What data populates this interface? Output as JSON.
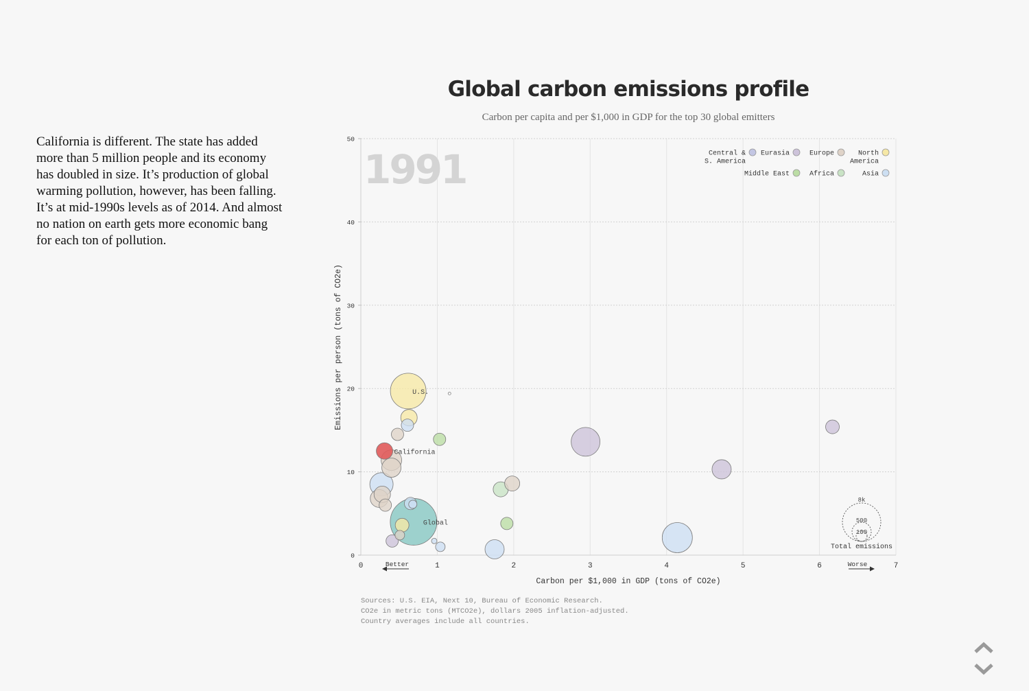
{
  "narrative": "California is different. The state has added more than 5 million people and its economy has doubled in size. It’s production of global warming pollution, however, has been falling. It’s at mid-1990s levels as of 2014. And almost no nation on earth gets more economic bang for each ton of pollution.",
  "chart_data": {
    "type": "scatter",
    "title": "Global carbon emissions profile",
    "subtitle": "Carbon per capita and per $1,000 in GDP for the top 30 global emitters",
    "year": "1991",
    "xlabel": "Carbon per $1,000 in GDP (tons of CO2e)",
    "ylabel": "Emissions per person (tons of CO2e)",
    "xlim": [
      0,
      7
    ],
    "ylim": [
      0,
      50
    ],
    "x_ticks": [
      0,
      1,
      2,
      3,
      4,
      5,
      6,
      7
    ],
    "y_ticks": [
      0,
      10,
      20,
      30,
      40,
      50
    ],
    "grid": true,
    "better_label": "Better",
    "worse_label": "Worse",
    "legend_position": "top-right",
    "legend": [
      {
        "lines": [
          "Central &",
          "S. America"
        ],
        "color": "#c3c6e3"
      },
      {
        "lines": [
          "Eurasia"
        ],
        "color": "#cdc3da"
      },
      {
        "lines": [
          "Europe"
        ],
        "color": "#dfd3c8"
      },
      {
        "lines": [
          "North",
          "America"
        ],
        "color": "#f6e8a6"
      },
      {
        "lines": [
          "Middle East"
        ],
        "color": "#bcdda5"
      },
      {
        "lines": [
          "Africa"
        ],
        "color": "#c9e3c5"
      },
      {
        "lines": [
          "Asia"
        ],
        "color": "#cddff2"
      }
    ],
    "size_legend": {
      "title": "Total emissions",
      "values": [
        "8k",
        "500",
        "100"
      ]
    },
    "points": [
      {
        "x": 0.62,
        "y": 19.7,
        "r": 26,
        "color": "#f6e8a6",
        "label": "U.S."
      },
      {
        "x": 0.69,
        "y": 4.0,
        "r": 34,
        "color": "#7fc4bf",
        "label": "Global"
      },
      {
        "x": 0.31,
        "y": 12.5,
        "r": 12,
        "color": "#e05a5a",
        "label": "California"
      },
      {
        "x": 1.16,
        "y": 19.4,
        "r": 2,
        "color": "#ffffff",
        "label": ""
      },
      {
        "x": 0.63,
        "y": 16.5,
        "r": 12,
        "color": "#f6e8a6",
        "label": ""
      },
      {
        "x": 0.61,
        "y": 15.6,
        "r": 9,
        "color": "#cddff2",
        "label": ""
      },
      {
        "x": 0.48,
        "y": 14.5,
        "r": 9,
        "color": "#dfd3c8",
        "label": ""
      },
      {
        "x": 1.03,
        "y": 13.9,
        "r": 9,
        "color": "#bcdda5",
        "label": ""
      },
      {
        "x": 0.4,
        "y": 11.4,
        "r": 15,
        "color": "#dfd3c8",
        "label": ""
      },
      {
        "x": 0.4,
        "y": 10.5,
        "r": 14,
        "color": "#dfd3c8",
        "label": ""
      },
      {
        "x": 0.27,
        "y": 8.5,
        "r": 17,
        "color": "#cddff2",
        "label": ""
      },
      {
        "x": 0.28,
        "y": 7.3,
        "r": 12,
        "color": "#dfd3c8",
        "label": ""
      },
      {
        "x": 0.24,
        "y": 6.8,
        "r": 13,
        "color": "#dfd3c8",
        "label": ""
      },
      {
        "x": 0.32,
        "y": 6.0,
        "r": 9,
        "color": "#dfd3c8",
        "label": ""
      },
      {
        "x": 0.65,
        "y": 6.2,
        "r": 9,
        "color": "#cddff2",
        "label": ""
      },
      {
        "x": 0.68,
        "y": 6.1,
        "r": 6,
        "color": "#cddff2",
        "label": ""
      },
      {
        "x": 0.54,
        "y": 3.6,
        "r": 10,
        "color": "#f6e8a6",
        "label": ""
      },
      {
        "x": 0.51,
        "y": 2.4,
        "r": 7,
        "color": "#dfd3c8",
        "label": ""
      },
      {
        "x": 0.41,
        "y": 1.7,
        "r": 9,
        "color": "#cdc3da",
        "label": ""
      },
      {
        "x": 0.96,
        "y": 1.7,
        "r": 4,
        "color": "#cddff2",
        "label": ""
      },
      {
        "x": 1.04,
        "y": 1.0,
        "r": 7,
        "color": "#cddff2",
        "label": ""
      },
      {
        "x": 1.83,
        "y": 7.9,
        "r": 11,
        "color": "#c9e3c5",
        "label": ""
      },
      {
        "x": 1.98,
        "y": 8.6,
        "r": 11,
        "color": "#dfd3c8",
        "label": ""
      },
      {
        "x": 1.91,
        "y": 3.8,
        "r": 9,
        "color": "#bcdda5",
        "label": ""
      },
      {
        "x": 1.75,
        "y": 0.7,
        "r": 14,
        "color": "#cddff2",
        "label": ""
      },
      {
        "x": 2.94,
        "y": 13.6,
        "r": 21,
        "color": "#cdc3da",
        "label": ""
      },
      {
        "x": 4.14,
        "y": 2.1,
        "r": 22,
        "color": "#cddff2",
        "label": ""
      },
      {
        "x": 4.72,
        "y": 10.3,
        "r": 14,
        "color": "#cdc3da",
        "label": ""
      },
      {
        "x": 6.17,
        "y": 15.4,
        "r": 10,
        "color": "#cdc3da",
        "label": ""
      }
    ]
  },
  "sources": [
    "Sources: U.S. EIA, Next 10, Bureau of Economic Research.",
    "CO2e in metric tons (MTCO2e), dollars 2005 inflation-adjusted.",
    "Country averages include all countries."
  ],
  "nav": {
    "up_icon": "chevron-up-icon",
    "down_icon": "chevron-down-icon",
    "color": "#9a9a9a"
  }
}
